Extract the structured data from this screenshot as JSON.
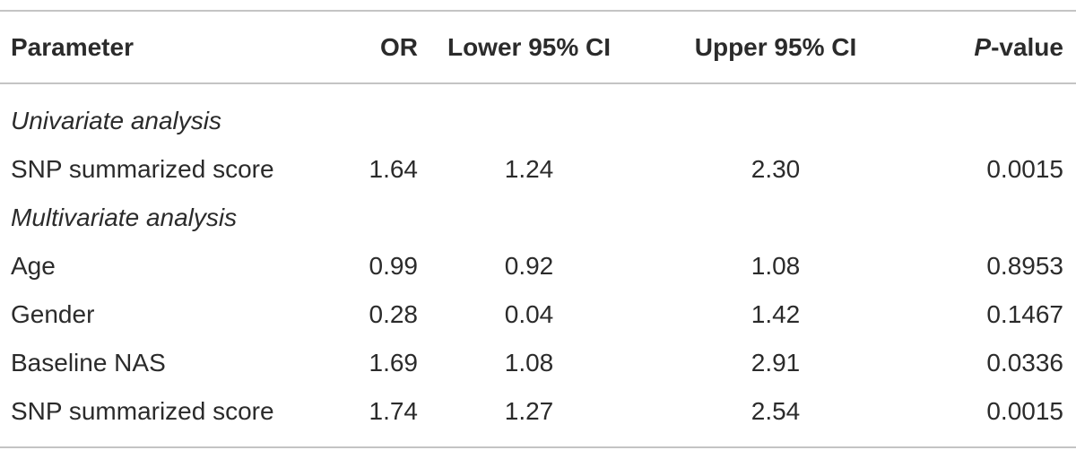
{
  "table": {
    "header": [
      "Parameter",
      "OR",
      "Lower 95% CI",
      "Upper 95% CI",
      "P-value"
    ],
    "rows": [
      [
        "Univariate analysis"
      ],
      [
        "SNP summarized score",
        "1.64",
        "1.24",
        "2.30",
        "0.0015"
      ],
      [
        "Multivariate analysis"
      ],
      [
        "Age",
        "0.99",
        "0.92",
        "1.08",
        "0.8953"
      ],
      [
        "Gender",
        "0.28",
        "0.04",
        "1.42",
        "0.1467"
      ],
      [
        "Baseline NAS",
        "1.69",
        "1.08",
        "2.91",
        "0.0336"
      ],
      [
        "SNP summarized score",
        "1.74",
        "1.27",
        "2.54",
        "0.0015"
      ]
    ]
  }
}
